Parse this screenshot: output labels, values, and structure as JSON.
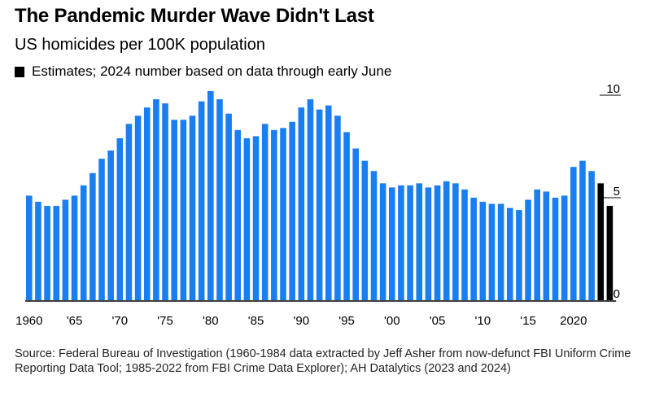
{
  "title": "The Pandemic Murder Wave Didn't Last",
  "subtitle": "US homicides per 100K population",
  "legend": {
    "label": "Estimates; 2024 number based on data through early June"
  },
  "source": "Source: Federal Bureau of Investigation (1960-1984 data extracted by Jeff Asher from now-defunct FBI Uniform Crime Reporting Data Tool; 1985-2022 from FBI Crime Data Explorer); AH Datalytics (2023 and 2024)",
  "colors": {
    "actual": "#1a7ef3",
    "estimate": "#000000"
  },
  "chart_data": {
    "type": "bar",
    "title": "The Pandemic Murder Wave Didn't Last",
    "subtitle": "US homicides per 100K population",
    "xlabel": "",
    "ylabel": "",
    "ylim": [
      0,
      10
    ],
    "yticks": [
      "0",
      "5",
      "10"
    ],
    "xticks": [
      "1960",
      "'65",
      "'70",
      "'75",
      "'80",
      "'85",
      "'90",
      "'95",
      "'00",
      "'05",
      "'10",
      "'15",
      "2020"
    ],
    "grid": false,
    "legend_position": "top-left",
    "categories": [
      1960,
      1961,
      1962,
      1963,
      1964,
      1965,
      1966,
      1967,
      1968,
      1969,
      1970,
      1971,
      1972,
      1973,
      1974,
      1975,
      1976,
      1977,
      1978,
      1979,
      1980,
      1981,
      1982,
      1983,
      1984,
      1985,
      1986,
      1987,
      1988,
      1989,
      1990,
      1991,
      1992,
      1993,
      1994,
      1995,
      1996,
      1997,
      1998,
      1999,
      2000,
      2001,
      2002,
      2003,
      2004,
      2005,
      2006,
      2007,
      2008,
      2009,
      2010,
      2011,
      2012,
      2013,
      2014,
      2015,
      2016,
      2017,
      2018,
      2019,
      2020,
      2021,
      2022,
      2023,
      2024
    ],
    "series": [
      {
        "values": [
          5.1,
          4.8,
          4.6,
          4.6,
          4.9,
          5.1,
          5.6,
          6.2,
          6.9,
          7.3,
          7.9,
          8.6,
          9.0,
          9.4,
          9.8,
          9.6,
          8.8,
          8.8,
          9.0,
          9.7,
          10.2,
          9.8,
          9.1,
          8.3,
          7.9,
          8.0,
          8.6,
          8.3,
          8.4,
          8.7,
          9.4,
          9.8,
          9.3,
          9.5,
          9.0,
          8.2,
          7.4,
          6.8,
          6.3,
          5.7,
          5.5,
          5.6,
          5.6,
          5.7,
          5.5,
          5.6,
          5.8,
          5.7,
          5.4,
          5.0,
          4.8,
          4.7,
          4.7,
          4.5,
          4.4,
          4.9,
          5.4,
          5.3,
          5.0,
          5.1,
          6.5,
          6.8,
          6.3,
          5.7,
          4.6
        ],
        "estimate_from": 2023
      }
    ]
  }
}
